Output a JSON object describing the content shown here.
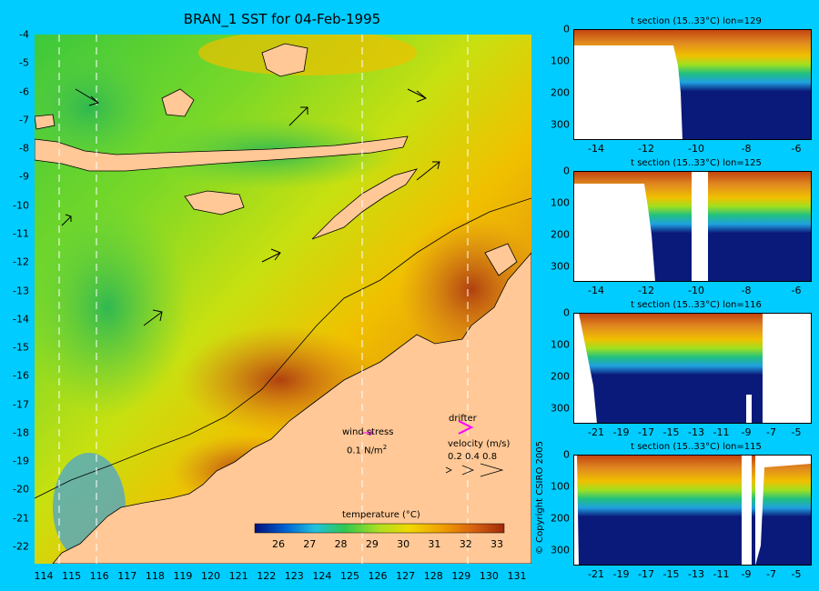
{
  "title": "BRAN_1 SST for 04-Feb-1995",
  "map": {
    "lat_ticks": [
      "-4",
      "-5",
      "-6",
      "-7",
      "-8",
      "-9",
      "-10",
      "-11",
      "-12",
      "-13",
      "-14",
      "-15",
      "-16",
      "-17",
      "-18",
      "-19",
      "-20",
      "-21",
      "-22"
    ],
    "lon_ticks": [
      "114",
      "115",
      "116",
      "117",
      "118",
      "119",
      "120",
      "121",
      "122",
      "123",
      "124",
      "125",
      "126",
      "127",
      "128",
      "129",
      "130",
      "131"
    ],
    "wind_stress_label": "wind stress",
    "wind_stress_value": "0.1 N/m",
    "wind_stress_exp": "2",
    "drifter_label": "drifter",
    "velocity_label": "velocity (m/s)",
    "velocity_values": "0.2 0.4 0.8",
    "colorbar_title": "temperature (°C)",
    "colorbar_ticks": [
      "26",
      "27",
      "28",
      "29",
      "30",
      "31",
      "32",
      "33"
    ]
  },
  "sections": [
    {
      "title": "t section (15..33°C) lon=129",
      "x_ticks": [
        "-14",
        "-12",
        "-10",
        "-8",
        "-6"
      ],
      "y_ticks": [
        "0",
        "100",
        "200",
        "300"
      ]
    },
    {
      "title": "t section (15..33°C) lon=125",
      "x_ticks": [
        "-14",
        "-12",
        "-10",
        "-8",
        "-6"
      ],
      "y_ticks": [
        "0",
        "100",
        "200",
        "300"
      ]
    },
    {
      "title": "t section (15..33°C) lon=116",
      "x_ticks": [
        "-21",
        "-19",
        "-17",
        "-15",
        "-13",
        "-11",
        "-9",
        "-7",
        "-5"
      ],
      "y_ticks": [
        "0",
        "100",
        "200",
        "300"
      ]
    },
    {
      "title": "t section (15..33°C) lon=115",
      "x_ticks": [
        "-21",
        "-19",
        "-17",
        "-15",
        "-13",
        "-11",
        "-9",
        "-7",
        "-5"
      ],
      "y_ticks": [
        "0",
        "100",
        "200",
        "300"
      ]
    }
  ],
  "copyright": "© Copyright CSIRO 2005",
  "colors": {
    "background": "#00ccff",
    "land": "#ffc896",
    "deep": "#0a1a7a",
    "warm": "#b43c0a",
    "drifter": "#ff00ff"
  }
}
